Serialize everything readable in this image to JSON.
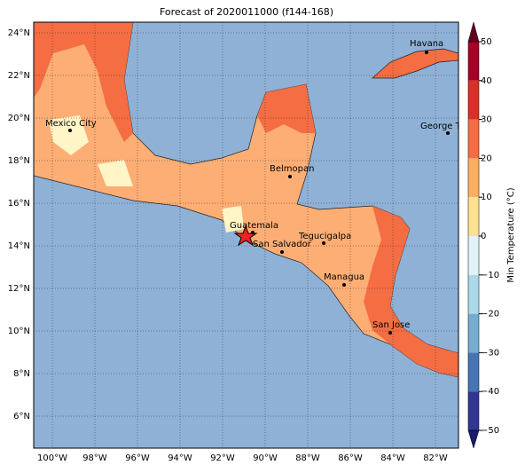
{
  "title": "Forecast of 2020011000 (f144-168)",
  "lat_ticks": [
    {
      "value": 24,
      "label": "24°N"
    },
    {
      "value": 22,
      "label": "22°N"
    },
    {
      "value": 20,
      "label": "20°N"
    },
    {
      "value": 18,
      "label": "18°N"
    },
    {
      "value": 16,
      "label": "16°N"
    },
    {
      "value": 14,
      "label": "14°N"
    },
    {
      "value": 12,
      "label": "12°N"
    },
    {
      "value": 10,
      "label": "10°N"
    },
    {
      "value": 8,
      "label": "8°N"
    },
    {
      "value": 6,
      "label": "6°N"
    }
  ],
  "lon_ticks": [
    {
      "value": -100,
      "label": "100°W"
    },
    {
      "value": -98,
      "label": "98°W"
    },
    {
      "value": -96,
      "label": "96°W"
    },
    {
      "value": -94,
      "label": "94°W"
    },
    {
      "value": -92,
      "label": "92°W"
    },
    {
      "value": -90,
      "label": "90°W"
    },
    {
      "value": -88,
      "label": "88°W"
    },
    {
      "value": -86,
      "label": "86°W"
    },
    {
      "value": -84,
      "label": "84°W"
    },
    {
      "value": -82,
      "label": "82°W"
    }
  ],
  "cities": [
    "Havana",
    "Mexico City",
    "George Town",
    "Belmopan",
    "Guatemala",
    "Tegucigalpa",
    "San Salvador",
    "Managua",
    "San Jose"
  ],
  "colorbar": {
    "label": "Min Temperature (°C)",
    "ticks": [
      {
        "value": 50,
        "label": "50"
      },
      {
        "value": 40,
        "label": "40"
      },
      {
        "value": 30,
        "label": "30"
      },
      {
        "value": 20,
        "label": "20"
      },
      {
        "value": 10,
        "label": "10"
      },
      {
        "value": 0,
        "label": "0"
      },
      {
        "value": -10,
        "label": "−10"
      },
      {
        "value": -20,
        "label": "−20"
      },
      {
        "value": -30,
        "label": "−30"
      },
      {
        "value": -40,
        "label": "−40"
      },
      {
        "value": -50,
        "label": "−50"
      }
    ]
  }
}
